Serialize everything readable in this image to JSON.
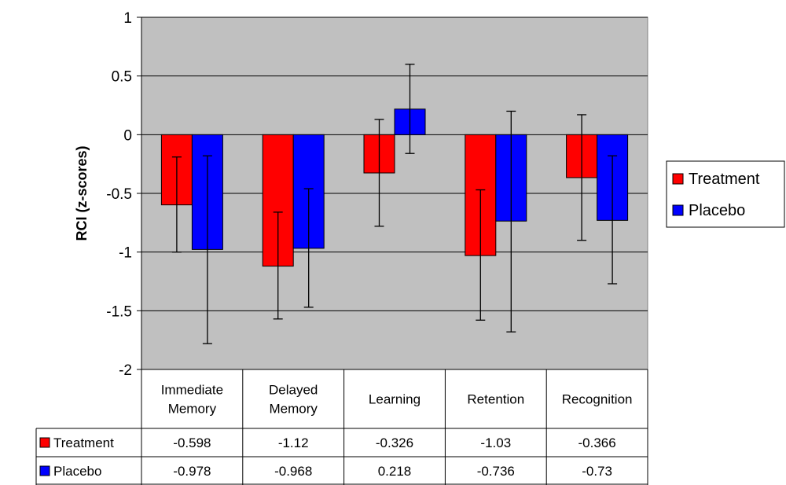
{
  "chart_data": {
    "type": "bar",
    "ylabel": "RCI (z-scores)",
    "ylim": [
      -2,
      1
    ],
    "yticks": [
      1,
      0.5,
      0,
      -0.5,
      -1,
      -1.5,
      -2
    ],
    "ytick_labels": [
      "1",
      "0.5",
      "0",
      "-0.5",
      "-1",
      "-1.5",
      "-2"
    ],
    "grid": true,
    "legend_position": "right",
    "categories": [
      [
        "Immediate",
        "Memory"
      ],
      [
        "Delayed",
        "Memory"
      ],
      [
        "Learning"
      ],
      [
        "Retention"
      ],
      [
        "Recognition"
      ]
    ],
    "series": [
      {
        "name": "Treatment",
        "color": "#ff0000",
        "values": [
          -0.598,
          -1.12,
          -0.326,
          -1.03,
          -0.366
        ],
        "value_labels": [
          "-0.598",
          "-1.12",
          "-0.326",
          "-1.03",
          "-0.366"
        ],
        "error_low": [
          -1.0,
          -1.57,
          -0.78,
          -1.58,
          -0.9
        ],
        "error_high": [
          -0.19,
          -0.66,
          0.13,
          -0.47,
          0.17
        ]
      },
      {
        "name": "Placebo",
        "color": "#0000ff",
        "values": [
          -0.978,
          -0.968,
          0.218,
          -0.736,
          -0.73
        ],
        "value_labels": [
          "-0.978",
          "-0.968",
          "0.218",
          "-0.736",
          "-0.73"
        ],
        "error_low": [
          -1.78,
          -1.47,
          -0.16,
          -1.68,
          -1.27
        ],
        "error_high": [
          -0.18,
          -0.46,
          0.6,
          0.2,
          -0.18
        ]
      }
    ],
    "plot_background": "#c0c0c0"
  }
}
